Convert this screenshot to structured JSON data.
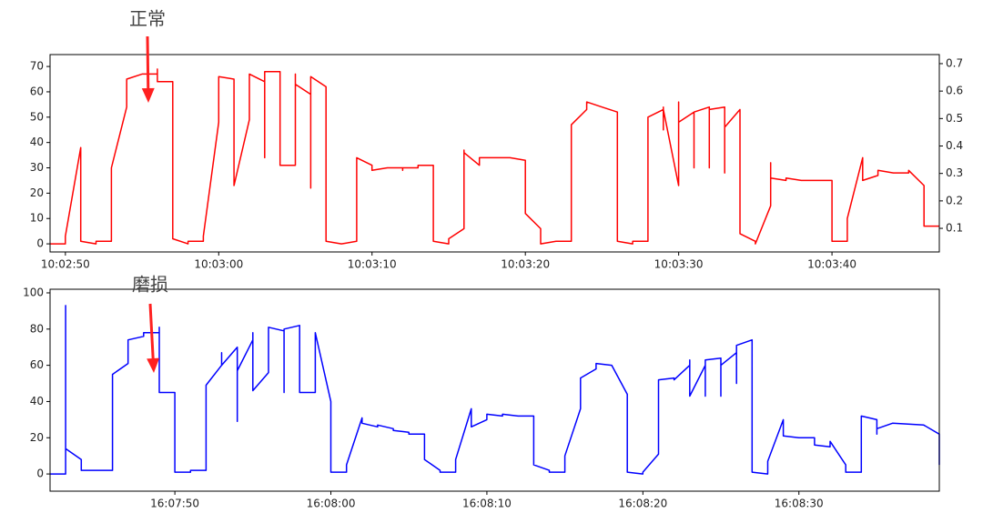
{
  "chart_data": [
    {
      "type": "line",
      "annotation": "正常",
      "x": [
        "10:02:49",
        "10:02:50",
        "10:02:50",
        "10:02:51",
        "10:02:51",
        "10:02:51",
        "10:02:52",
        "10:02:52",
        "10:02:53",
        "10:02:53",
        "10:02:54",
        "10:02:54",
        "10:02:54",
        "10:02:55",
        "10:02:56",
        "10:02:56",
        "10:02:56",
        "10:02:57",
        "10:02:57",
        "10:02:57",
        "10:02:58",
        "10:02:58",
        "10:02:59",
        "10:02:59",
        "10:03:00",
        "10:03:00",
        "10:03:00",
        "10:03:00",
        "10:03:01",
        "10:03:01",
        "10:03:01",
        "10:03:01",
        "10:03:02",
        "10:03:02",
        "10:03:02",
        "10:03:03",
        "10:03:03",
        "10:03:03",
        "10:03:03",
        "10:03:04",
        "10:03:04",
        "10:03:04",
        "10:03:04",
        "10:03:05",
        "10:03:05",
        "10:03:05",
        "10:03:05",
        "10:03:06",
        "10:03:06",
        "10:03:06",
        "10:03:06",
        "10:03:07",
        "10:03:07",
        "10:03:07",
        "10:03:07",
        "10:03:07",
        "10:03:08",
        "10:03:09",
        "10:03:09",
        "10:03:09",
        "10:03:10",
        "10:03:10",
        "10:03:11",
        "10:03:12",
        "10:03:12",
        "10:03:12",
        "10:03:13",
        "10:03:13",
        "10:03:14",
        "10:03:14",
        "10:03:14",
        "10:03:15",
        "10:03:15",
        "10:03:15",
        "10:03:16",
        "10:03:16",
        "10:03:16",
        "10:03:17",
        "10:03:17",
        "10:03:17",
        "10:03:18",
        "10:03:19",
        "10:03:20",
        "10:03:20",
        "10:03:20",
        "10:03:21",
        "10:03:21",
        "10:03:21",
        "10:03:22",
        "10:03:23",
        "10:03:23",
        "10:03:23",
        "10:03:23",
        "10:03:24",
        "10:03:24",
        "10:03:24",
        "10:03:25",
        "10:03:26",
        "10:03:26",
        "10:03:26",
        "10:03:26",
        "10:03:27",
        "10:03:27",
        "10:03:28",
        "10:03:28",
        "10:03:28",
        "10:03:28",
        "10:03:29",
        "10:03:29",
        "10:03:29",
        "10:03:29",
        "10:03:30",
        "10:03:30",
        "10:03:30",
        "10:03:30",
        "10:03:31",
        "10:03:31",
        "10:03:31",
        "10:03:32",
        "10:03:32",
        "10:03:32",
        "10:03:32",
        "10:03:33",
        "10:03:33",
        "10:03:33",
        "10:03:33",
        "10:03:33",
        "10:03:34",
        "10:03:34",
        "10:03:34",
        "10:03:35",
        "10:03:35",
        "10:03:36",
        "10:03:36",
        "10:03:36",
        "10:03:37",
        "10:03:37",
        "10:03:38",
        "10:03:39",
        "10:03:40",
        "10:03:40",
        "10:03:40",
        "10:03:40",
        "10:03:41",
        "10:03:41",
        "10:03:42",
        "10:03:42",
        "10:03:42",
        "10:03:43",
        "10:03:43",
        "10:03:44",
        "10:03:45",
        "10:03:45",
        "10:03:46",
        "10:03:46",
        "10:03:47"
      ],
      "series": [
        {
          "color": "#ff0000",
          "values": [
            0,
            0,
            3,
            38,
            5,
            1,
            0,
            1,
            1,
            30,
            54,
            62,
            65,
            67,
            67,
            69,
            64,
            64,
            12,
            2,
            0,
            1,
            1,
            3,
            48,
            57,
            64,
            66,
            65,
            59,
            64,
            23,
            49,
            66,
            67,
            64,
            50,
            34,
            68,
            68,
            67,
            61,
            31,
            31,
            62,
            67,
            63,
            59,
            22,
            50,
            66,
            62,
            50,
            42,
            6,
            1,
            0,
            1,
            28,
            34,
            31,
            29,
            30,
            30,
            29,
            30,
            30,
            31,
            31,
            9,
            1,
            0,
            1,
            2,
            6,
            37,
            36,
            31,
            32,
            34,
            34,
            34,
            33,
            23,
            12,
            6,
            1,
            0,
            1,
            1,
            6,
            40,
            47,
            53,
            55,
            56,
            54,
            52,
            19,
            2,
            1,
            0,
            1,
            1,
            24,
            45,
            50,
            53,
            54,
            45,
            53,
            23,
            54,
            56,
            48,
            52,
            30,
            52,
            54,
            46,
            30,
            53,
            54,
            40,
            28,
            29,
            46,
            53,
            21,
            4,
            1,
            0,
            15,
            32,
            26,
            25,
            26,
            25,
            25,
            25,
            14,
            2,
            1,
            1,
            10,
            34,
            29,
            25,
            27,
            29,
            28,
            28,
            29,
            23,
            7,
            7
          ]
        }
      ],
      "xlim": [
        "10:02:49",
        "10:03:47"
      ],
      "xticks": [
        "10:02:50",
        "10:03:00",
        "10:03:10",
        "10:03:20",
        "10:03:30",
        "10:03:40"
      ],
      "ylim": [
        -3.2,
        74.7
      ],
      "yticks": [
        0,
        10,
        20,
        30,
        40,
        50,
        60,
        70
      ],
      "y2lim": [
        0.014,
        0.733
      ],
      "y2ticks": [
        0.1,
        0.2,
        0.3,
        0.4,
        0.5,
        0.6,
        0.7
      ]
    },
    {
      "type": "line",
      "annotation": "磨损",
      "x": [
        "16:07:42",
        "16:07:43",
        "16:07:43",
        "16:07:43",
        "16:07:43",
        "16:07:44",
        "16:07:44",
        "16:07:46",
        "16:07:46",
        "16:07:46",
        "16:07:47",
        "16:07:47",
        "16:07:47",
        "16:07:47",
        "16:07:48",
        "16:07:48",
        "16:07:48",
        "16:07:49",
        "16:07:49",
        "16:07:49",
        "16:07:49",
        "16:07:50",
        "16:07:50",
        "16:07:50",
        "16:07:50",
        "16:07:51",
        "16:07:51",
        "16:07:52",
        "16:07:52",
        "16:07:52",
        "16:07:53",
        "16:07:53",
        "16:07:53",
        "16:07:53",
        "16:07:54",
        "16:07:54",
        "16:07:54",
        "16:07:55",
        "16:07:55",
        "16:07:55",
        "16:07:55",
        "16:07:56",
        "16:07:56",
        "16:07:56",
        "16:07:56",
        "16:07:57",
        "16:07:57",
        "16:07:57",
        "16:07:58",
        "16:07:58",
        "16:07:58",
        "16:07:58",
        "16:07:58",
        "16:07:59",
        "16:07:59",
        "16:07:59",
        "16:08:00",
        "16:08:00",
        "16:08:00",
        "16:08:00",
        "16:08:01",
        "16:08:01",
        "16:08:02",
        "16:08:02",
        "16:08:03",
        "16:08:03",
        "16:08:04",
        "16:08:04",
        "16:08:05",
        "16:08:05",
        "16:08:06",
        "16:08:06",
        "16:08:06",
        "16:08:07",
        "16:08:07",
        "16:08:08",
        "16:08:08",
        "16:08:08",
        "16:08:09",
        "16:08:09",
        "16:08:09",
        "16:08:09",
        "16:08:10",
        "16:08:10",
        "16:08:10",
        "16:08:11",
        "16:08:11",
        "16:08:12",
        "16:08:13",
        "16:08:13",
        "16:08:13",
        "16:08:14",
        "16:08:14",
        "16:08:15",
        "16:08:15",
        "16:08:16",
        "16:08:16",
        "16:08:16",
        "16:08:16",
        "16:08:17",
        "16:08:17",
        "16:08:17",
        "16:08:18",
        "16:08:19",
        "16:08:19",
        "16:08:19",
        "16:08:20",
        "16:08:20",
        "16:08:21",
        "16:08:21",
        "16:08:21",
        "16:08:21",
        "16:08:21",
        "16:08:22",
        "16:08:22",
        "16:08:23",
        "16:08:23",
        "16:08:23",
        "16:08:23",
        "16:08:24",
        "16:08:24",
        "16:08:24",
        "16:08:25",
        "16:08:25",
        "16:08:25",
        "16:08:26",
        "16:08:26",
        "16:08:26",
        "16:08:26",
        "16:08:27",
        "16:08:27",
        "16:08:27",
        "16:08:27",
        "16:08:28",
        "16:08:28",
        "16:08:29",
        "16:08:29",
        "16:08:29",
        "16:08:29",
        "16:08:30",
        "16:08:31",
        "16:08:31",
        "16:08:31",
        "16:08:32",
        "16:08:32",
        "16:08:33",
        "16:08:33",
        "16:08:33",
        "16:08:34",
        "16:08:34",
        "16:08:34",
        "16:08:35",
        "16:08:35",
        "16:08:35",
        "16:08:36",
        "16:08:38",
        "16:08:39",
        "16:08:39"
      ],
      "series": [
        {
          "color": "#0000ff",
          "values": [
            0,
            0,
            93,
            15,
            14,
            8,
            2,
            2,
            42,
            55,
            61,
            65,
            70,
            74,
            76,
            77,
            78,
            78,
            80,
            81,
            45,
            45,
            8,
            3,
            1,
            1,
            2,
            2,
            30,
            49,
            60,
            65,
            67,
            60,
            70,
            29,
            57,
            74,
            75,
            78,
            46,
            56,
            60,
            80,
            81,
            79,
            45,
            80,
            82,
            47,
            76,
            81,
            45,
            45,
            76,
            78,
            40,
            6,
            2,
            1,
            1,
            5,
            31,
            28,
            26,
            27,
            25,
            24,
            23,
            22,
            22,
            21,
            8,
            2,
            1,
            1,
            3,
            8,
            36,
            35,
            33,
            26,
            30,
            32,
            33,
            32,
            33,
            32,
            32,
            18,
            5,
            2,
            1,
            1,
            10,
            36,
            45,
            50,
            53,
            58,
            60,
            61,
            60,
            44,
            4,
            1,
            0,
            1,
            11,
            38,
            46,
            51,
            52,
            53,
            52,
            60,
            63,
            62,
            43,
            60,
            43,
            63,
            64,
            43,
            60,
            67,
            53,
            50,
            71,
            74,
            16,
            5,
            1,
            0,
            7,
            30,
            28,
            24,
            21,
            20,
            20,
            19,
            16,
            15,
            18,
            5,
            2,
            1,
            1,
            22,
            32,
            30,
            22,
            25,
            28,
            27,
            22,
            5
          ]
        }
      ],
      "xlim": [
        "16:07:42",
        "16:08:39"
      ],
      "xticks": [
        "16:07:50",
        "16:08:00",
        "16:08:10",
        "16:08:20",
        "16:08:30"
      ],
      "ylim": [
        -9.5,
        102
      ],
      "yticks": [
        0,
        20,
        40,
        60,
        80,
        100
      ]
    }
  ]
}
